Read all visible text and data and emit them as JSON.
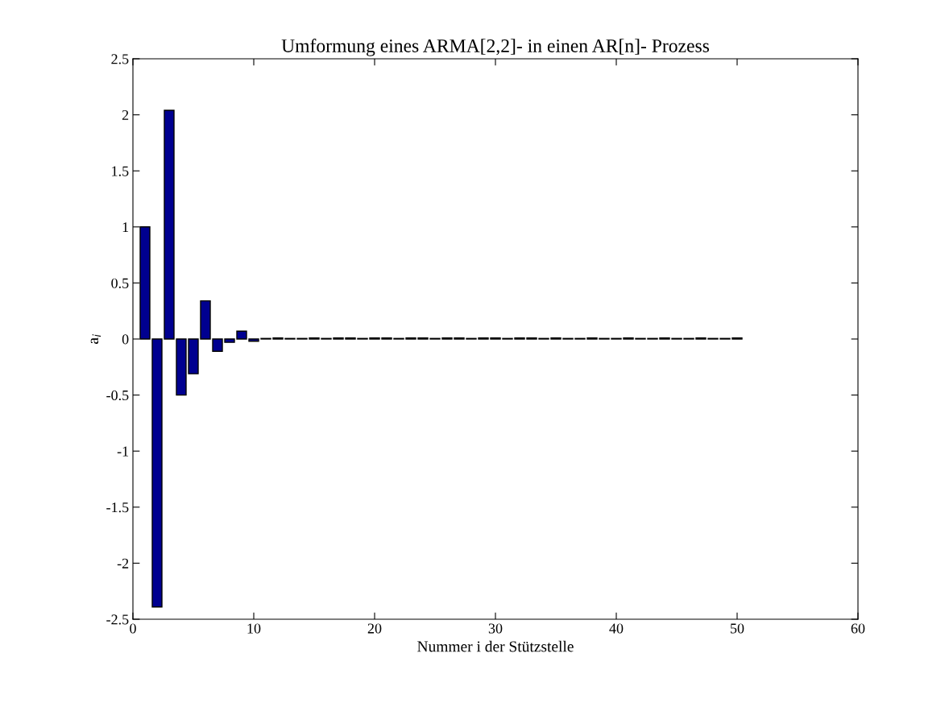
{
  "chart_data": {
    "type": "bar",
    "title": "Umformung eines ARMA[2,2]- in einen AR[n]- Prozess",
    "xlabel": "Nummer i der Stützstelle",
    "ylabel": "a$_{i}$",
    "x": [
      1,
      2,
      3,
      4,
      5,
      6,
      7,
      8,
      9,
      10,
      11,
      12,
      13,
      14,
      15,
      16,
      17,
      18,
      19,
      20,
      21,
      22,
      23,
      24,
      25,
      26,
      27,
      28,
      29,
      30,
      31,
      32,
      33,
      34,
      35,
      36,
      37,
      38,
      39,
      40,
      41,
      42,
      43,
      44,
      45,
      46,
      47,
      48,
      49,
      50
    ],
    "values": [
      1.0,
      -2.39,
      2.04,
      -0.5,
      -0.31,
      0.34,
      -0.11,
      -0.03,
      0.07,
      -0.02,
      0.005,
      0.01,
      0.005,
      0.005,
      0.01,
      0.005,
      0.01,
      0.01,
      0.005,
      0.01,
      0.01,
      0.005,
      0.01,
      0.01,
      0.005,
      0.01,
      0.01,
      0.005,
      0.01,
      0.01,
      0.005,
      0.01,
      0.01,
      0.005,
      0.01,
      0.005,
      0.005,
      0.01,
      0.005,
      0.005,
      0.01,
      0.005,
      0.005,
      0.01,
      0.005,
      0.005,
      0.01,
      0.005,
      0.005,
      0.01
    ],
    "color": "#000090",
    "xlim": [
      0,
      60
    ],
    "xticks": [
      0,
      10,
      20,
      30,
      40,
      50,
      60
    ],
    "ylim": [
      -2.5,
      2.5
    ],
    "yticks": [
      -2.5,
      -2,
      -1.5,
      -1,
      -0.5,
      0,
      0.5,
      1,
      1.5,
      2,
      2.5
    ],
    "grid": false,
    "legend": false
  }
}
